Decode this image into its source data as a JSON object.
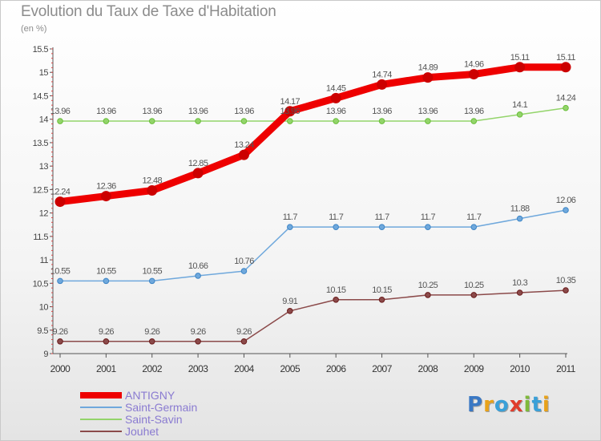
{
  "title": "Evolution du Taux de Taxe d'Habitation",
  "unit_label": "(en %)",
  "logo": {
    "letters": [
      {
        "ch": "P",
        "color": "#3a78c4"
      },
      {
        "ch": "r",
        "color": "#e8a21a"
      },
      {
        "ch": "o",
        "color": "#3aa0d8"
      },
      {
        "ch": "x",
        "color": "#e03c2c"
      },
      {
        "ch": "i",
        "color": "#7fba3a"
      },
      {
        "ch": "t",
        "color": "#3aa0d8"
      },
      {
        "ch": "i",
        "color": "#e8a21a"
      }
    ]
  },
  "chart_data": {
    "type": "line",
    "title": "Evolution du Taux de Taxe d'Habitation",
    "ylabel": "(en %)",
    "x": [
      "2000",
      "2001",
      "2002",
      "2003",
      "2004",
      "2005",
      "2006",
      "2007",
      "2008",
      "2009",
      "2010",
      "2011"
    ],
    "ylim": [
      9,
      15.5
    ],
    "yticks": [
      "9",
      "9.5",
      "10",
      "10.5",
      "11",
      "11.5",
      "12",
      "12.5",
      "13",
      "13.5",
      "14",
      "14.5",
      "15",
      "15.5"
    ],
    "grid": false,
    "legend_position": "bottom-left",
    "series": [
      {
        "name": "ANTIGNY",
        "color": "#ee0000",
        "point_color": "#cc0000",
        "values": [
          12.24,
          12.36,
          12.48,
          12.85,
          13.24,
          14.17,
          14.45,
          14.74,
          14.89,
          14.96,
          15.11,
          15.11
        ],
        "labels": [
          "12.24",
          "12.36",
          "12.48",
          "12.85",
          "13.24",
          "14.17",
          "14.45",
          "14.74",
          "14.89",
          "14.96",
          "15.11",
          "15.11"
        ]
      },
      {
        "name": "Saint-Germain",
        "color": "#6fa8dc",
        "point_color": "#3d85c6",
        "values": [
          10.55,
          10.55,
          10.55,
          10.66,
          10.76,
          11.7,
          11.7,
          11.7,
          11.7,
          11.7,
          11.88,
          12.06
        ],
        "labels": [
          "10.55",
          "10.55",
          "10.55",
          "10.66",
          "10.76",
          "11.7",
          "11.7",
          "11.7",
          "11.7",
          "11.7",
          "11.88",
          "12.06"
        ]
      },
      {
        "name": "Saint-Savin",
        "color": "#93d46a",
        "point_color": "#6abf3a",
        "values": [
          13.96,
          13.96,
          13.96,
          13.96,
          13.96,
          13.96,
          13.96,
          13.96,
          13.96,
          13.96,
          14.1,
          14.24
        ],
        "labels": [
          "13.96",
          "13.96",
          "13.96",
          "13.96",
          "13.96",
          "13.96",
          "13.96",
          "13.96",
          "13.96",
          "13.96",
          "14.1",
          "14.24"
        ]
      },
      {
        "name": "Jouhet",
        "color": "#8b4a4a",
        "point_color": "#6b1c1c",
        "values": [
          9.26,
          9.26,
          9.26,
          9.26,
          9.26,
          9.91,
          10.15,
          10.15,
          10.25,
          10.25,
          10.3,
          10.35
        ],
        "labels": [
          "9.26",
          "9.26",
          "9.26",
          "9.26",
          "9.26",
          "9.91",
          "10.15",
          "10.15",
          "10.25",
          "10.25",
          "10.3",
          "10.35"
        ]
      }
    ]
  }
}
